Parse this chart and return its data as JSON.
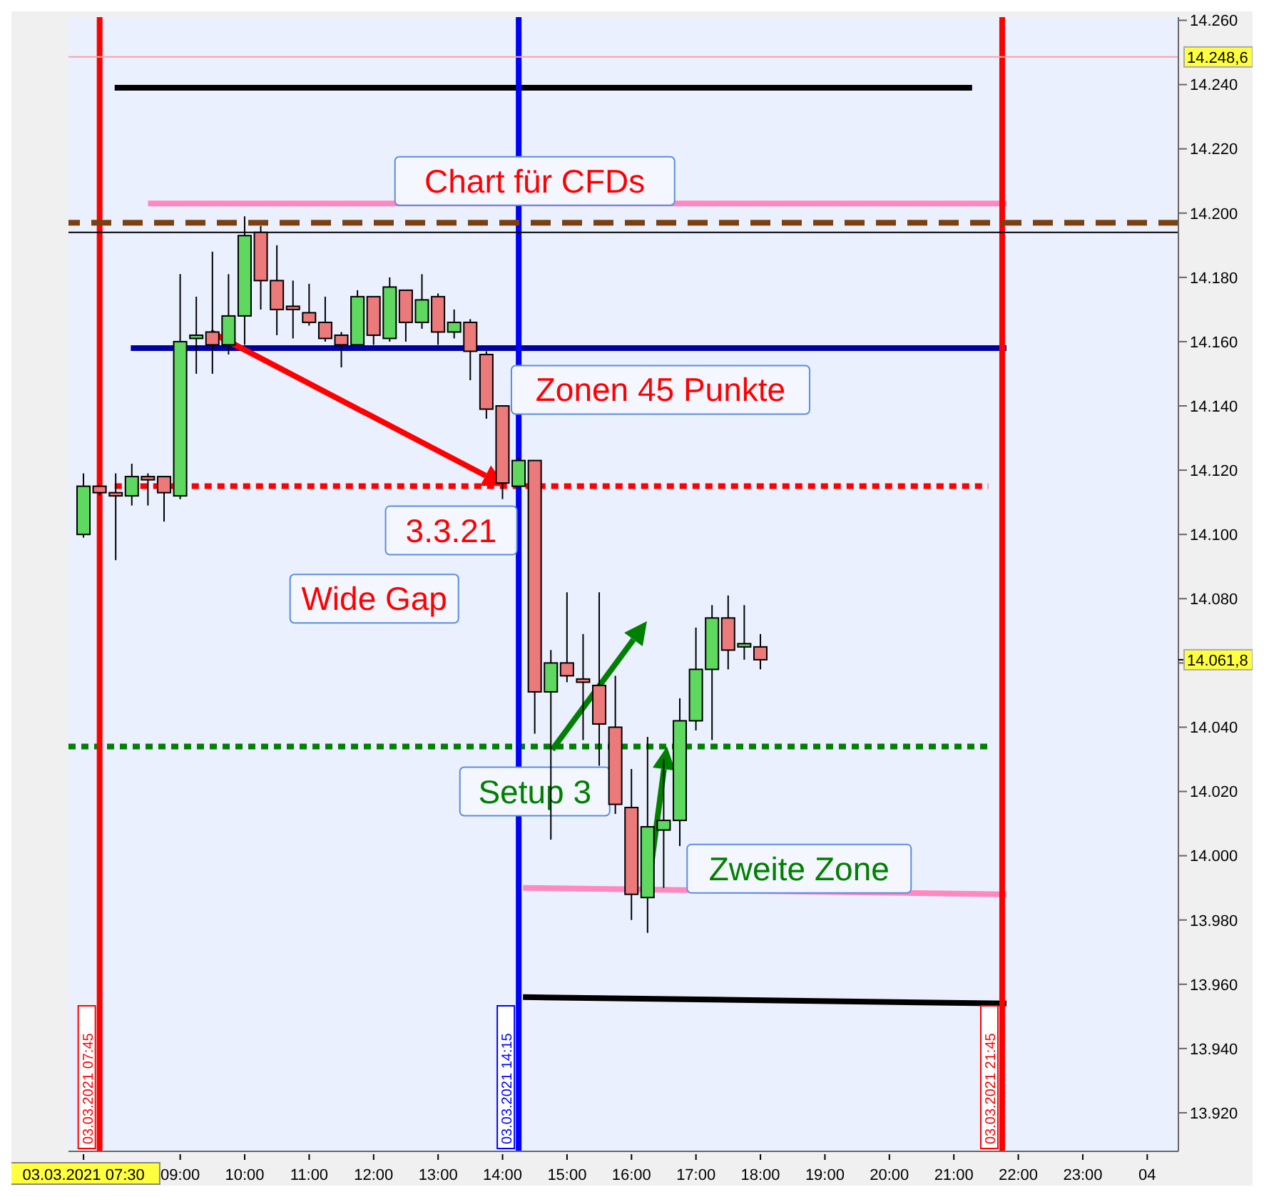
{
  "chart_data": {
    "type": "candlestick",
    "x": [
      "2021-03-03T07:30",
      "2021-03-03T07:45",
      "2021-03-03T08:00",
      "2021-03-03T08:15",
      "2021-03-03T08:30",
      "2021-03-03T08:45",
      "2021-03-03T09:00",
      "2021-03-03T09:15",
      "2021-03-03T09:30",
      "2021-03-03T09:45",
      "2021-03-03T10:00",
      "2021-03-03T10:15",
      "2021-03-03T10:30",
      "2021-03-03T10:45",
      "2021-03-03T11:00",
      "2021-03-03T11:15",
      "2021-03-03T11:30",
      "2021-03-03T11:45",
      "2021-03-03T12:00",
      "2021-03-03T12:15",
      "2021-03-03T12:30",
      "2021-03-03T12:45",
      "2021-03-03T13:00",
      "2021-03-03T13:15",
      "2021-03-03T13:30",
      "2021-03-03T13:45",
      "2021-03-03T14:00",
      "2021-03-03T14:15",
      "2021-03-03T14:30",
      "2021-03-03T14:45",
      "2021-03-03T15:00",
      "2021-03-03T15:15",
      "2021-03-03T15:30",
      "2021-03-03T15:45",
      "2021-03-03T16:00",
      "2021-03-03T16:15",
      "2021-03-03T16:30",
      "2021-03-03T16:45",
      "2021-03-03T17:00",
      "2021-03-03T17:15",
      "2021-03-03T17:30",
      "2021-03-03T17:45",
      "2021-03-03T18:00"
    ],
    "ohlc": [
      [
        14100,
        14119,
        14099,
        14115
      ],
      [
        14115,
        14115,
        14112,
        14113
      ],
      [
        14113,
        14119,
        14092,
        14112
      ],
      [
        14112,
        14122,
        14109,
        14118
      ],
      [
        14118,
        14119,
        14109,
        14117
      ],
      [
        14118,
        14118,
        14104,
        14113
      ],
      [
        14112,
        14181,
        14111,
        14160
      ],
      [
        14161,
        14174,
        14150,
        14162
      ],
      [
        14163,
        14188,
        14150,
        14159
      ],
      [
        14159,
        14181,
        14156,
        14168
      ],
      [
        14168,
        14199,
        14159,
        14193
      ],
      [
        14194,
        14196,
        14170,
        14179
      ],
      [
        14179,
        14190,
        14162,
        14170
      ],
      [
        14171,
        14179,
        14161,
        14170
      ],
      [
        14169,
        14178,
        14165,
        14166
      ],
      [
        14166,
        14174,
        14160,
        14161
      ],
      [
        14162,
        14163,
        14152,
        14159
      ],
      [
        14159,
        14176,
        14159,
        14174
      ],
      [
        14174,
        14174,
        14159,
        14162
      ],
      [
        14161,
        14180,
        14160,
        14177
      ],
      [
        14176,
        14176,
        14160,
        14166
      ],
      [
        14166,
        14181,
        14164,
        14173
      ],
      [
        14174,
        14175,
        14159,
        14163
      ],
      [
        14163,
        14170,
        14161,
        14166
      ],
      [
        14166,
        14167,
        14148,
        14157
      ],
      [
        14156,
        14157,
        14136,
        14139
      ],
      [
        14140,
        14140,
        14111,
        14116
      ],
      [
        14115,
        14124,
        14115,
        14123
      ],
      [
        14123,
        14123,
        14038,
        14051
      ],
      [
        14051,
        14064,
        14005,
        14060
      ],
      [
        14060,
        14082,
        14054,
        14056
      ],
      [
        14055,
        14069,
        14036,
        14054
      ],
      [
        14053,
        14082,
        14028,
        14041
      ],
      [
        14040,
        14056,
        14013,
        14016
      ],
      [
        14015,
        14027,
        13980,
        13988
      ],
      [
        13987,
        14037,
        13976,
        14009
      ],
      [
        14008,
        14030,
        13990,
        14011
      ],
      [
        14011,
        14049,
        14003,
        14042
      ],
      [
        14042,
        14071,
        14039,
        14058
      ],
      [
        14058,
        14078,
        14036,
        14074
      ],
      [
        14074,
        14081,
        14058,
        14064
      ],
      [
        14065,
        14078,
        14061,
        14066
      ],
      [
        14065,
        14069,
        14058,
        14061
      ]
    ],
    "colors": [
      "#5ed85e",
      "#ec7a7a",
      "#ec7a7a",
      "#5ed85e",
      "#ec7a7a",
      "#ec7a7a",
      "#5ed85e",
      "#5ed85e",
      "#ec7a7a",
      "#5ed85e",
      "#5ed85e",
      "#ec7a7a",
      "#ec7a7a",
      "#ec7a7a",
      "#ec7a7a",
      "#ec7a7a",
      "#ec7a7a",
      "#5ed85e",
      "#ec7a7a",
      "#5ed85e",
      "#ec7a7a",
      "#5ed85e",
      "#ec7a7a",
      "#5ed85e",
      "#ec7a7a",
      "#ec7a7a",
      "#ec7a7a",
      "#5ed85e",
      "#ec7a7a",
      "#5ed85e",
      "#ec7a7a",
      "#ec7a7a",
      "#ec7a7a",
      "#ec7a7a",
      "#ec7a7a",
      "#5ed85e",
      "#5ed85e",
      "#5ed85e",
      "#5ed85e",
      "#5ed85e",
      "#ec7a7a",
      "#5ed85e",
      "#ec7a7a"
    ],
    "series": [
      {
        "type": "line",
        "color": "#000000",
        "x": [
          "2021-03-03T07:59",
          "2021-03-03T21:17"
        ],
        "values": [
          14239,
          14239
        ],
        "line_style": "solid"
      },
      {
        "type": "line",
        "color": "#ff88c0",
        "x": [
          "2021-03-03T08:30",
          "2021-03-03T21:49"
        ],
        "values": [
          14203,
          14203
        ],
        "line_style": "solid"
      },
      {
        "type": "line",
        "color": "#0000a0",
        "x": [
          "2021-03-03T08:14",
          "2021-03-03T21:49"
        ],
        "values": [
          14158,
          14158
        ],
        "line_style": "solid"
      },
      {
        "type": "line",
        "color": "#ff0000",
        "x": [
          "2021-03-03T07:59",
          "2021-03-03T21:32"
        ],
        "values": [
          14115,
          14115
        ],
        "line_style": "dotted"
      },
      {
        "type": "line",
        "color": "#008000",
        "x": [
          "2021-03-03T07:16",
          "2021-03-03T21:32"
        ],
        "values": [
          14034,
          14034
        ],
        "line_style": "dotted"
      },
      {
        "type": "line",
        "color": "#ff88c0",
        "x": [
          "2021-03-03T14:19",
          "2021-03-03T21:49"
        ],
        "values": [
          13990,
          13988
        ],
        "line_style": "solid"
      },
      {
        "type": "line",
        "color": "#000000",
        "x": [
          "2021-03-03T14:19",
          "2021-03-03T21:49"
        ],
        "values": [
          13956,
          13954
        ],
        "line_style": "solid"
      }
    ],
    "ref_lines": [
      {
        "axis": "x",
        "value": "2021-03-03T07:45",
        "label": "03.03.2021 07:45",
        "color": "#ff0000"
      },
      {
        "axis": "x",
        "value": "2021-03-03T14:15",
        "label": "03.03.2021 14:15",
        "color": "#0000ff"
      },
      {
        "axis": "x",
        "value": "2021-03-03T21:45",
        "label": "03.03.2021 21:45",
        "color": "#ff0000"
      },
      {
        "axis": "y",
        "value": 14197,
        "color": "#7a4010",
        "line_style": "dashed"
      },
      {
        "axis": "y",
        "value": 14194,
        "color": "#000000",
        "line_style": "solid"
      },
      {
        "axis": "y",
        "value": 14248.6,
        "label": "14.248,6",
        "color": "#ffa0a0",
        "line_style": "solid"
      }
    ],
    "annotations": [
      "Chart für CFDs",
      "Zonen 45 Punkte",
      {
        "text": "3.3.21",
        "x": "2021-03-03T14:00",
        "y": 14115
      },
      "Wide Gap",
      "Setup 3",
      "Zweite Zone",
      "14.061,8"
    ],
    "xlim": [
      "2021-03-03T07:16",
      "2021-03-04T00:29"
    ],
    "xticks": [
      {
        "value": "2021-03-03T07:30",
        "label": "03.03.2021 07:30"
      },
      {
        "value": "2021-03-03T09:00",
        "label": "09:00"
      },
      {
        "value": "2021-03-03T10:00",
        "label": "10:00"
      },
      {
        "value": "2021-03-03T11:00",
        "label": "11:00"
      },
      {
        "value": "2021-03-03T12:00",
        "label": "12:00"
      },
      {
        "value": "2021-03-03T13:00",
        "label": "13:00"
      },
      {
        "value": "2021-03-03T14:00",
        "label": "14:00"
      },
      {
        "value": "2021-03-03T15:00",
        "label": "15:00"
      },
      {
        "value": "2021-03-03T16:00",
        "label": "16:00"
      },
      {
        "value": "2021-03-03T17:00",
        "label": "17:00"
      },
      {
        "value": "2021-03-03T18:00",
        "label": "18:00"
      },
      {
        "value": "2021-03-03T19:00",
        "label": "19:00"
      },
      {
        "value": "2021-03-03T20:00",
        "label": "20:00"
      },
      {
        "value": "2021-03-03T21:00",
        "label": "21:00"
      },
      {
        "value": "2021-03-03T22:00",
        "label": "22:00"
      },
      {
        "value": "2021-03-03T23:00",
        "label": "23:00"
      },
      {
        "value": "2021-03-04T00:00",
        "label": "04"
      }
    ],
    "ylim": [
      13908,
      14261
    ],
    "yticks": [
      {
        "value": 13920,
        "label": "13.920"
      },
      {
        "value": 13940,
        "label": "13.940"
      },
      {
        "value": 13960,
        "label": "13.960"
      },
      {
        "value": 13980,
        "label": "13.980"
      },
      {
        "value": 14000,
        "label": "14.000"
      },
      {
        "value": 14020,
        "label": "14.020"
      },
      {
        "value": 14040,
        "label": "14.040"
      },
      {
        "value": 14060,
        "label": null
      },
      {
        "value": 14080,
        "label": "14.080"
      },
      {
        "value": 14100,
        "label": "14.100"
      },
      {
        "value": 14120,
        "label": "14.120"
      },
      {
        "value": 14140,
        "label": "14.140"
      },
      {
        "value": 14160,
        "label": "14.160"
      },
      {
        "value": 14180,
        "label": "14.180"
      },
      {
        "value": 14200,
        "label": "14.200"
      },
      {
        "value": 14220,
        "label": "14.220"
      },
      {
        "value": 14240,
        "label": "14.240"
      },
      {
        "value": 14260,
        "label": "14.260"
      }
    ]
  }
}
